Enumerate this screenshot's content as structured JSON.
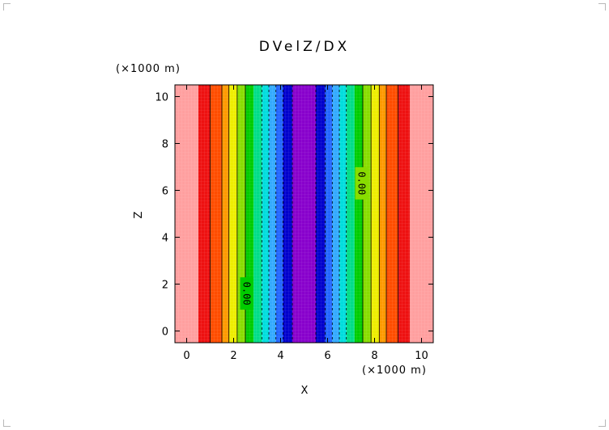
{
  "chart_data": {
    "type": "heatmap",
    "title": "DVelZ/DX",
    "xlabel": "X",
    "ylabel": "Z",
    "x_unit": "(×1000 m)",
    "z_unit": "(×1000 m)",
    "xlim": [
      -0.5,
      10.5
    ],
    "ylim": [
      -0.5,
      10.5
    ],
    "x_ticks": [
      0,
      2,
      4,
      6,
      8,
      10
    ],
    "y_ticks": [
      0,
      2,
      4,
      6,
      8,
      10
    ],
    "x_tick_labels": [
      "0",
      "2",
      "4",
      "6",
      "8",
      "10"
    ],
    "y_tick_labels": [
      "0",
      "2",
      "4",
      "6",
      "8",
      "10"
    ],
    "bands": [
      {
        "x0": -0.5,
        "x1": 0.5,
        "color": "#ff9f9f"
      },
      {
        "x0": 0.5,
        "x1": 1.0,
        "color": "#ee1111"
      },
      {
        "x0": 1.0,
        "x1": 1.5,
        "color": "#ff4d00"
      },
      {
        "x0": 1.5,
        "x1": 1.8,
        "color": "#ff9900"
      },
      {
        "x0": 1.8,
        "x1": 2.15,
        "color": "#eeee00"
      },
      {
        "x0": 2.15,
        "x1": 2.5,
        "color": "#88dd00"
      },
      {
        "x0": 2.5,
        "x1": 2.85,
        "color": "#00cc00"
      },
      {
        "x0": 2.85,
        "x1": 3.2,
        "color": "#00dd88"
      },
      {
        "x0": 3.2,
        "x1": 3.5,
        "color": "#00dddd"
      },
      {
        "x0": 3.5,
        "x1": 3.8,
        "color": "#33aaff"
      },
      {
        "x0": 3.8,
        "x1": 4.1,
        "color": "#2266ff"
      },
      {
        "x0": 4.1,
        "x1": 4.5,
        "color": "#0000cc"
      },
      {
        "x0": 4.5,
        "x1": 5.5,
        "color": "#8800cc"
      },
      {
        "x0": 5.5,
        "x1": 5.9,
        "color": "#0000cc"
      },
      {
        "x0": 5.9,
        "x1": 6.2,
        "color": "#2266ff"
      },
      {
        "x0": 6.2,
        "x1": 6.5,
        "color": "#33aaff"
      },
      {
        "x0": 6.5,
        "x1": 6.8,
        "color": "#00dddd"
      },
      {
        "x0": 6.8,
        "x1": 7.15,
        "color": "#00dd88"
      },
      {
        "x0": 7.15,
        "x1": 7.5,
        "color": "#00cc00"
      },
      {
        "x0": 7.5,
        "x1": 7.85,
        "color": "#88dd00"
      },
      {
        "x0": 7.85,
        "x1": 8.2,
        "color": "#eeee00"
      },
      {
        "x0": 8.2,
        "x1": 8.5,
        "color": "#ff9900"
      },
      {
        "x0": 8.5,
        "x1": 9.0,
        "color": "#ff4d00"
      },
      {
        "x0": 9.0,
        "x1": 9.5,
        "color": "#ee1111"
      },
      {
        "x0": 9.5,
        "x1": 10.5,
        "color": "#ff9f9f"
      }
    ],
    "contour_lines_solid": [
      1.0,
      1.5,
      1.8,
      2.15,
      2.5,
      7.5,
      7.85,
      8.2,
      8.5,
      9.0
    ],
    "contour_lines_dashed": [
      3.2,
      3.5,
      3.8,
      4.1,
      4.5,
      5.5,
      5.9,
      6.2,
      6.5,
      6.8
    ],
    "contour_labels": [
      {
        "text": "0.00",
        "x": 2.55,
        "z": 1.6
      },
      {
        "text": "0.00",
        "x": 7.45,
        "z": 6.3
      }
    ],
    "grid": true
  }
}
